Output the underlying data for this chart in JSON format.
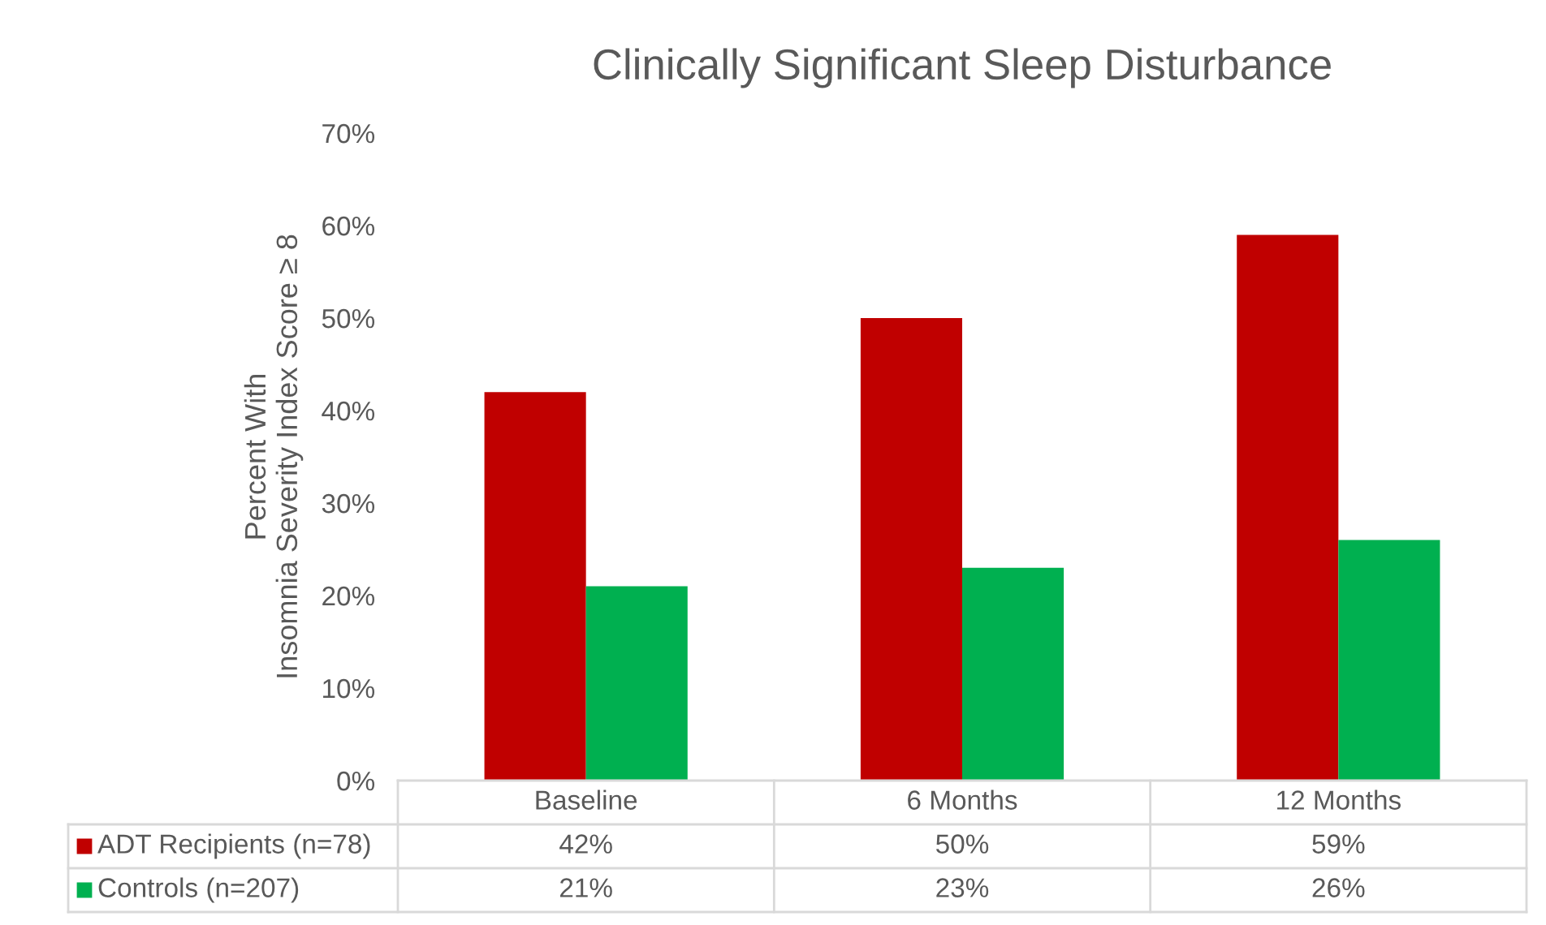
{
  "chart_data": {
    "type": "bar",
    "title": "Clinically Significant Sleep Disturbance",
    "ylabel": "Percent With\nInsomnia Severity Index Score ≥ 8",
    "categories": [
      "Baseline",
      "6 Months",
      "12 Months"
    ],
    "series": [
      {
        "name": "ADT Recipients (n=78)",
        "color": "#c00000",
        "values": [
          42,
          50,
          59
        ],
        "value_labels": [
          "42%",
          "50%",
          "59%"
        ]
      },
      {
        "name": "Controls (n=207)",
        "color": "#00b050",
        "values": [
          21,
          23,
          26
        ],
        "value_labels": [
          "21%",
          "23%",
          "26%"
        ]
      }
    ],
    "ylim": [
      0,
      70
    ],
    "yticks": [
      {
        "value": 0,
        "label": "0%"
      },
      {
        "value": 10,
        "label": "10%"
      },
      {
        "value": 20,
        "label": "20%"
      },
      {
        "value": 30,
        "label": "30%"
      },
      {
        "value": 40,
        "label": "40%"
      },
      {
        "value": 50,
        "label": "50%"
      },
      {
        "value": 60,
        "label": "60%"
      },
      {
        "value": 70,
        "label": "70%"
      }
    ],
    "grid": false,
    "legend": "bottom"
  }
}
